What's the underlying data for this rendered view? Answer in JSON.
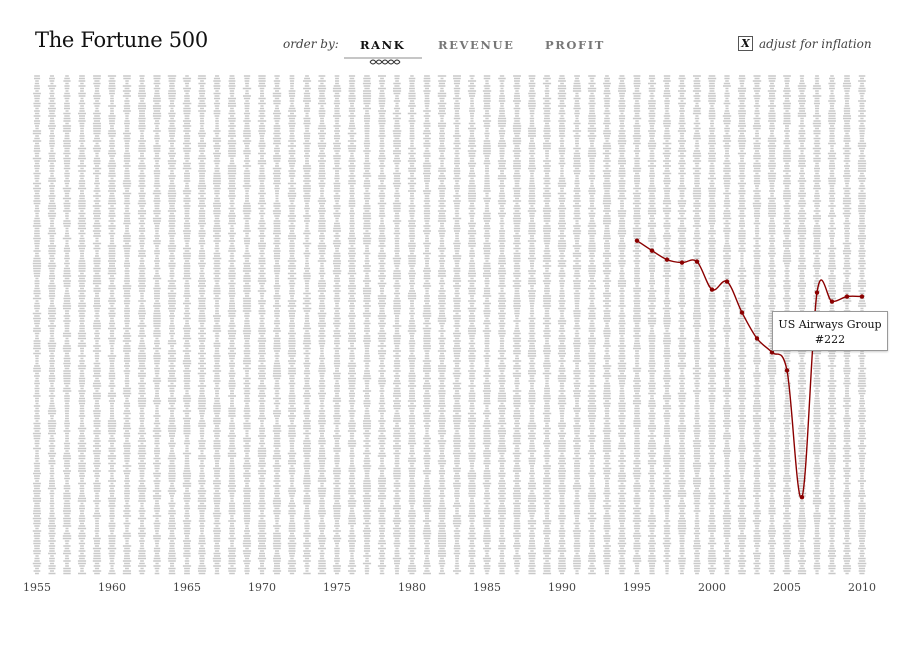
{
  "header": {
    "title": "The Fortune 500",
    "order_label": "order by:",
    "tabs": [
      {
        "label": "RANK",
        "active": true
      },
      {
        "label": "REVENUE",
        "active": false
      },
      {
        "label": "PROFIT",
        "active": false
      }
    ],
    "inflation": {
      "checked": true,
      "mark": "X",
      "label": "adjust for inflation"
    }
  },
  "tooltip": {
    "company": "US Airways Group",
    "rank": "#222"
  },
  "colors": {
    "bars": "#c8c8c8",
    "highlight": "#8b0000",
    "axis_text": "#444444"
  },
  "chart_data": {
    "type": "line",
    "x_range": [
      1955,
      2010
    ],
    "y_range_rank": [
      1,
      500
    ],
    "y_inverted": true,
    "x_tick_labels": [
      "1955",
      "1960",
      "1965",
      "1970",
      "1975",
      "1980",
      "1985",
      "1990",
      "1995",
      "2000",
      "2005",
      "2010"
    ],
    "background": "grey distribution of all 500 companies' ranks per year",
    "series": [
      {
        "name": "US Airways Group",
        "x": [
          1995,
          1996,
          1997,
          1998,
          1999,
          2000,
          2001,
          2002,
          2003,
          2004,
          2005,
          2006,
          2007,
          2008,
          2009,
          2010
        ],
        "y": [
          166,
          176,
          185,
          188,
          187,
          215,
          207,
          238,
          264,
          278,
          296,
          423,
          218,
          227,
          222,
          222
        ]
      }
    ]
  }
}
